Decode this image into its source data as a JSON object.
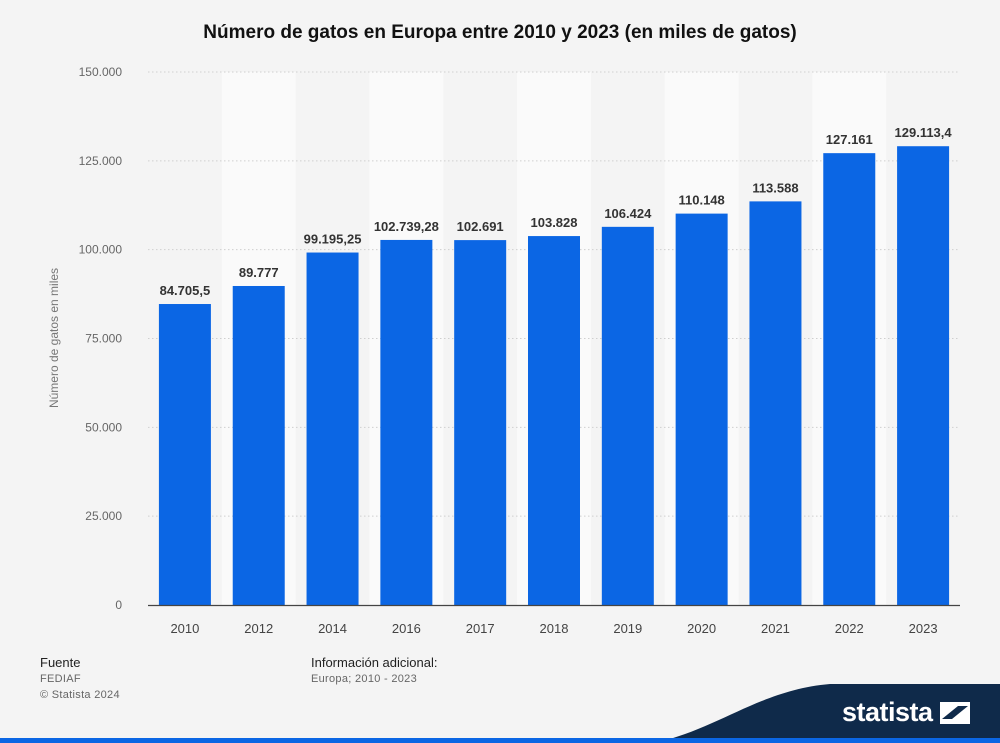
{
  "chart_data": {
    "type": "bar",
    "title": "Número de gatos en Europa entre 2010 y 2023 (en miles de gatos)",
    "ylabel": "Número de gatos en miles",
    "xlabel": "",
    "categories": [
      "2010",
      "2012",
      "2014",
      "2016",
      "2017",
      "2018",
      "2019",
      "2020",
      "2021",
      "2022",
      "2023"
    ],
    "values": [
      84705.5,
      89777,
      99195.25,
      102739.28,
      102691,
      103828,
      106424,
      110148,
      113588,
      127161,
      129113.4
    ],
    "value_labels": [
      "84.705,5",
      "89.777",
      "99.195,25",
      "102.739,28",
      "102.691",
      "103.828",
      "106.424",
      "110.148",
      "113.588",
      "127.161",
      "129.113,4"
    ],
    "ylim": [
      0,
      150000
    ],
    "yticks": [
      0,
      25000,
      50000,
      75000,
      100000,
      125000,
      150000
    ],
    "ytick_labels": [
      "0",
      "25.000",
      "50.000",
      "75.000",
      "100.000",
      "125.000",
      "150.000"
    ],
    "grid": true,
    "bar_color": "#0b66e4"
  },
  "footer": {
    "source_heading": "Fuente",
    "source_name": "FEDIAF",
    "copyright": "© Statista 2024",
    "info_heading": "Información adicional:",
    "info_text": "Europa; 2010 - 2023"
  },
  "brand": {
    "logo_text": "statista",
    "band_color": "#0f2a4a"
  }
}
